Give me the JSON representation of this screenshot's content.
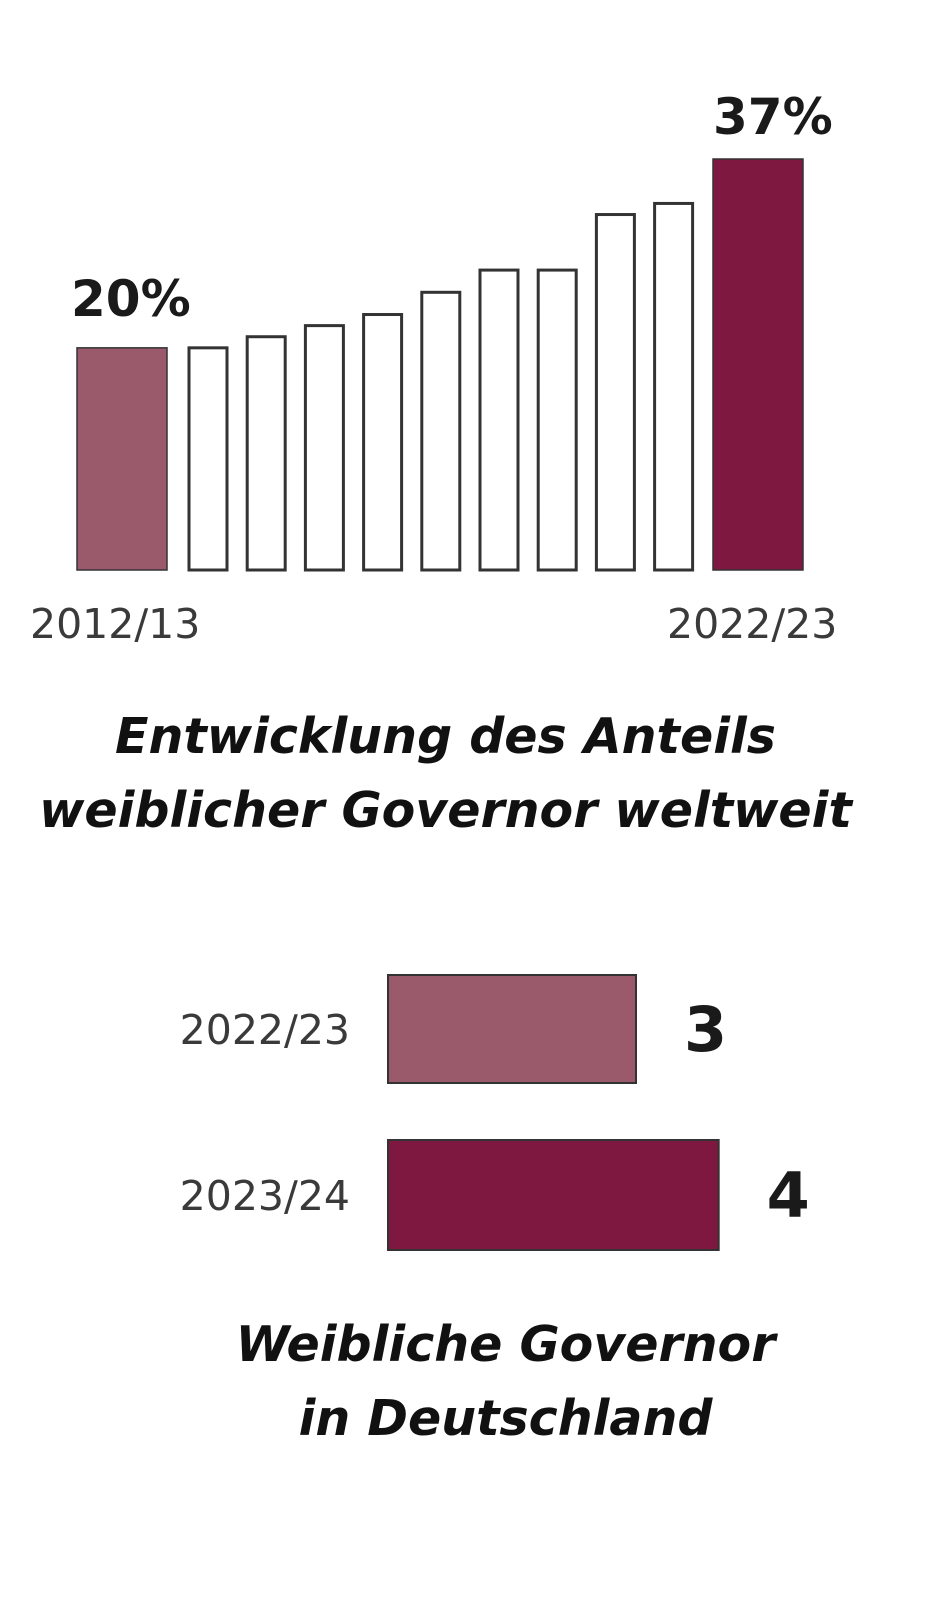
{
  "colors": {
    "first_bar": "#9b5a6c",
    "last_bar": "#7e1840",
    "empty_bar_fill": "#ffffff",
    "bar_stroke": "#333333",
    "text": "#111111"
  },
  "chart_data": [
    {
      "type": "bar",
      "categories": [
        "2012/13",
        "",
        "",
        "",
        "",
        "",
        "",
        "",
        "",
        "",
        "2022/23"
      ],
      "values": [
        20,
        20,
        21,
        22,
        23,
        25,
        27,
        27,
        32,
        33,
        37
      ],
      "tick_labels": [
        "2012/13",
        "2022/23"
      ],
      "value_labels": {
        "first": "20%",
        "last": "37%"
      },
      "title": [
        "Entwicklung des Anteils",
        "weiblicher Governor weltweit"
      ],
      "ylim": [
        0,
        40
      ],
      "grid": false
    },
    {
      "type": "bar",
      "orientation": "horizontal",
      "categories": [
        "2022/23",
        "2023/24"
      ],
      "values": [
        3,
        4
      ],
      "value_labels": [
        "3",
        "4"
      ],
      "title": [
        "Weibliche Governor",
        "in Deutschland"
      ],
      "grid": false
    }
  ]
}
